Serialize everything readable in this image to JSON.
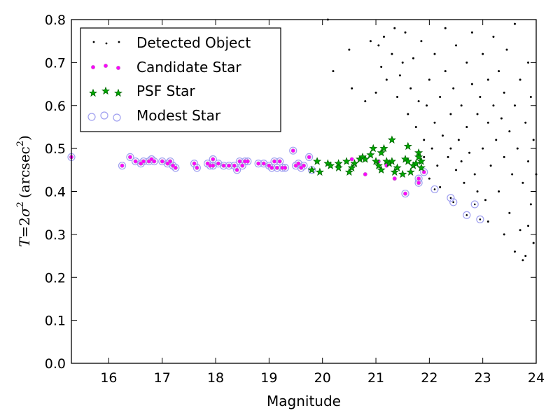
{
  "chart_data": {
    "type": "scatter",
    "xlabel": "Magnitude",
    "ylabel": {
      "T": "T",
      "eq": "=2",
      "sigma": "σ",
      "sup": "2",
      "unit_open": "(arcsec",
      "unit_sup": "2",
      "unit_close": ")"
    },
    "xlim": [
      15.3,
      24.0
    ],
    "ylim": [
      0.0,
      0.8
    ],
    "xticks": [
      "16",
      "17",
      "18",
      "19",
      "20",
      "21",
      "22",
      "23",
      "24"
    ],
    "yticks": [
      "0.0",
      "0.1",
      "0.2",
      "0.3",
      "0.4",
      "0.5",
      "0.6",
      "0.7",
      "0.8"
    ],
    "grid": false,
    "legend_position": "top-left",
    "colors": {
      "detected": "#000000",
      "candidate": "#ff00ff",
      "psf_fill": "#00aa00",
      "psf_edge": "#006400",
      "modest": "#a0a0f0"
    },
    "series": [
      {
        "name": "Detected Object",
        "marker": "dot"
      },
      {
        "name": "Candidate Star",
        "marker": "circle-magenta"
      },
      {
        "name": "PSF Star",
        "marker": "star-green"
      },
      {
        "name": "Modest Star",
        "marker": "hollow-circle"
      }
    ],
    "candidate_stars": [
      [
        15.3,
        0.48
      ],
      [
        16.25,
        0.46
      ],
      [
        16.4,
        0.48
      ],
      [
        16.5,
        0.47
      ],
      [
        16.6,
        0.465
      ],
      [
        16.65,
        0.47
      ],
      [
        16.75,
        0.47
      ],
      [
        16.8,
        0.475
      ],
      [
        16.85,
        0.47
      ],
      [
        17.0,
        0.47
      ],
      [
        17.1,
        0.465
      ],
      [
        17.15,
        0.47
      ],
      [
        17.2,
        0.46
      ],
      [
        17.25,
        0.455
      ],
      [
        17.6,
        0.465
      ],
      [
        17.65,
        0.455
      ],
      [
        17.85,
        0.465
      ],
      [
        17.9,
        0.46
      ],
      [
        17.95,
        0.475
      ],
      [
        17.95,
        0.46
      ],
      [
        18.05,
        0.465
      ],
      [
        18.15,
        0.46
      ],
      [
        18.25,
        0.46
      ],
      [
        18.35,
        0.46
      ],
      [
        18.4,
        0.45
      ],
      [
        18.45,
        0.47
      ],
      [
        18.5,
        0.46
      ],
      [
        18.55,
        0.47
      ],
      [
        18.6,
        0.47
      ],
      [
        18.8,
        0.465
      ],
      [
        18.9,
        0.465
      ],
      [
        19.0,
        0.46
      ],
      [
        19.05,
        0.455
      ],
      [
        19.1,
        0.47
      ],
      [
        19.15,
        0.455
      ],
      [
        19.2,
        0.47
      ],
      [
        19.25,
        0.455
      ],
      [
        19.3,
        0.455
      ],
      [
        19.45,
        0.495
      ],
      [
        19.5,
        0.46
      ],
      [
        19.55,
        0.465
      ],
      [
        19.6,
        0.455
      ],
      [
        19.65,
        0.46
      ],
      [
        19.75,
        0.48
      ],
      [
        19.8,
        0.45
      ],
      [
        20.55,
        0.475
      ],
      [
        20.8,
        0.44
      ],
      [
        21.05,
        0.47
      ],
      [
        21.2,
        0.46
      ],
      [
        21.35,
        0.43
      ],
      [
        21.55,
        0.395
      ],
      [
        21.8,
        0.43
      ],
      [
        21.8,
        0.42
      ],
      [
        21.9,
        0.445
      ]
    ],
    "psf_stars": [
      [
        19.8,
        0.45
      ],
      [
        19.9,
        0.47
      ],
      [
        19.95,
        0.445
      ],
      [
        20.1,
        0.465
      ],
      [
        20.15,
        0.46
      ],
      [
        20.3,
        0.465
      ],
      [
        20.3,
        0.455
      ],
      [
        20.45,
        0.47
      ],
      [
        20.5,
        0.445
      ],
      [
        20.55,
        0.455
      ],
      [
        20.6,
        0.465
      ],
      [
        20.7,
        0.475
      ],
      [
        20.75,
        0.48
      ],
      [
        20.8,
        0.475
      ],
      [
        20.9,
        0.485
      ],
      [
        20.95,
        0.5
      ],
      [
        21.0,
        0.47
      ],
      [
        21.05,
        0.46
      ],
      [
        21.1,
        0.49
      ],
      [
        21.1,
        0.45
      ],
      [
        21.15,
        0.5
      ],
      [
        21.2,
        0.47
      ],
      [
        21.25,
        0.465
      ],
      [
        21.3,
        0.52
      ],
      [
        21.3,
        0.47
      ],
      [
        21.35,
        0.445
      ],
      [
        21.4,
        0.455
      ],
      [
        21.5,
        0.44
      ],
      [
        21.55,
        0.475
      ],
      [
        21.6,
        0.505
      ],
      [
        21.6,
        0.47
      ],
      [
        21.65,
        0.445
      ],
      [
        21.7,
        0.46
      ],
      [
        21.75,
        0.465
      ],
      [
        21.8,
        0.49
      ],
      [
        21.8,
        0.48
      ],
      [
        21.85,
        0.455
      ],
      [
        21.85,
        0.47
      ]
    ],
    "modest_stars": [
      [
        15.3,
        0.48
      ],
      [
        16.25,
        0.46
      ],
      [
        16.4,
        0.48
      ],
      [
        16.5,
        0.47
      ],
      [
        16.6,
        0.465
      ],
      [
        16.65,
        0.47
      ],
      [
        16.75,
        0.47
      ],
      [
        16.8,
        0.475
      ],
      [
        16.85,
        0.47
      ],
      [
        17.0,
        0.47
      ],
      [
        17.1,
        0.465
      ],
      [
        17.15,
        0.47
      ],
      [
        17.2,
        0.46
      ],
      [
        17.25,
        0.455
      ],
      [
        17.6,
        0.465
      ],
      [
        17.65,
        0.455
      ],
      [
        17.85,
        0.465
      ],
      [
        17.9,
        0.46
      ],
      [
        17.95,
        0.475
      ],
      [
        17.95,
        0.46
      ],
      [
        18.05,
        0.465
      ],
      [
        18.15,
        0.46
      ],
      [
        18.25,
        0.46
      ],
      [
        18.35,
        0.46
      ],
      [
        18.4,
        0.45
      ],
      [
        18.45,
        0.47
      ],
      [
        18.5,
        0.46
      ],
      [
        18.55,
        0.47
      ],
      [
        18.6,
        0.47
      ],
      [
        18.8,
        0.465
      ],
      [
        18.9,
        0.465
      ],
      [
        19.0,
        0.46
      ],
      [
        19.05,
        0.455
      ],
      [
        19.1,
        0.47
      ],
      [
        19.15,
        0.455
      ],
      [
        19.2,
        0.47
      ],
      [
        19.25,
        0.455
      ],
      [
        19.3,
        0.455
      ],
      [
        19.45,
        0.495
      ],
      [
        19.5,
        0.46
      ],
      [
        19.55,
        0.465
      ],
      [
        19.6,
        0.455
      ],
      [
        19.65,
        0.46
      ],
      [
        19.75,
        0.48
      ],
      [
        19.8,
        0.45
      ],
      [
        21.55,
        0.395
      ],
      [
        21.8,
        0.43
      ],
      [
        21.8,
        0.42
      ],
      [
        21.9,
        0.445
      ],
      [
        22.1,
        0.405
      ],
      [
        22.4,
        0.385
      ],
      [
        22.45,
        0.375
      ],
      [
        22.7,
        0.345
      ],
      [
        22.85,
        0.37
      ],
      [
        22.95,
        0.335
      ]
    ],
    "detected_objects": [
      [
        20.1,
        0.8
      ],
      [
        20.2,
        0.68
      ],
      [
        20.5,
        0.73
      ],
      [
        20.55,
        0.64
      ],
      [
        20.8,
        0.61
      ],
      [
        20.9,
        0.75
      ],
      [
        21.0,
        0.63
      ],
      [
        21.05,
        0.74
      ],
      [
        21.1,
        0.69
      ],
      [
        21.15,
        0.76
      ],
      [
        21.2,
        0.66
      ],
      [
        21.3,
        0.72
      ],
      [
        21.35,
        0.78
      ],
      [
        21.4,
        0.62
      ],
      [
        21.45,
        0.67
      ],
      [
        21.5,
        0.7
      ],
      [
        21.55,
        0.77
      ],
      [
        21.6,
        0.58
      ],
      [
        21.65,
        0.64
      ],
      [
        21.7,
        0.71
      ],
      [
        21.75,
        0.55
      ],
      [
        21.8,
        0.61
      ],
      [
        21.85,
        0.75
      ],
      [
        21.9,
        0.52
      ],
      [
        21.95,
        0.6
      ],
      [
        22.0,
        0.66
      ],
      [
        22.05,
        0.5
      ],
      [
        22.1,
        0.56
      ],
      [
        22.1,
        0.72
      ],
      [
        22.15,
        0.46
      ],
      [
        22.2,
        0.62
      ],
      [
        22.25,
        0.53
      ],
      [
        22.3,
        0.78
      ],
      [
        22.3,
        0.68
      ],
      [
        22.35,
        0.48
      ],
      [
        22.4,
        0.58
      ],
      [
        22.45,
        0.64
      ],
      [
        22.5,
        0.45
      ],
      [
        22.5,
        0.74
      ],
      [
        22.55,
        0.52
      ],
      [
        22.6,
        0.6
      ],
      [
        22.65,
        0.42
      ],
      [
        22.7,
        0.7
      ],
      [
        22.7,
        0.55
      ],
      [
        22.75,
        0.49
      ],
      [
        22.8,
        0.65
      ],
      [
        22.8,
        0.77
      ],
      [
        22.85,
        0.44
      ],
      [
        22.9,
        0.58
      ],
      [
        22.95,
        0.62
      ],
      [
        23.0,
        0.5
      ],
      [
        23.0,
        0.72
      ],
      [
        23.05,
        0.38
      ],
      [
        23.1,
        0.56
      ],
      [
        23.1,
        0.66
      ],
      [
        23.15,
        0.46
      ],
      [
        23.2,
        0.6
      ],
      [
        23.2,
        0.76
      ],
      [
        23.25,
        0.52
      ],
      [
        23.3,
        0.4
      ],
      [
        23.3,
        0.68
      ],
      [
        23.35,
        0.57
      ],
      [
        23.4,
        0.48
      ],
      [
        23.4,
        0.63
      ],
      [
        23.45,
        0.73
      ],
      [
        23.5,
        0.35
      ],
      [
        23.5,
        0.54
      ],
      [
        23.55,
        0.44
      ],
      [
        23.6,
        0.6
      ],
      [
        23.6,
        0.79
      ],
      [
        23.65,
        0.5
      ],
      [
        23.7,
        0.66
      ],
      [
        23.7,
        0.31
      ],
      [
        23.75,
        0.42
      ],
      [
        23.8,
        0.56
      ],
      [
        23.8,
        0.25
      ],
      [
        23.85,
        0.47
      ],
      [
        23.85,
        0.7
      ],
      [
        23.9,
        0.37
      ],
      [
        23.9,
        0.62
      ],
      [
        23.95,
        0.28
      ],
      [
        23.95,
        0.52
      ],
      [
        24.0,
        0.44
      ],
      [
        21.9,
        0.48
      ],
      [
        22.0,
        0.43
      ],
      [
        22.2,
        0.41
      ],
      [
        22.4,
        0.5
      ],
      [
        22.6,
        0.47
      ],
      [
        22.9,
        0.4
      ],
      [
        23.1,
        0.33
      ],
      [
        23.4,
        0.3
      ],
      [
        23.6,
        0.26
      ],
      [
        23.75,
        0.24
      ],
      [
        23.85,
        0.32
      ]
    ]
  }
}
